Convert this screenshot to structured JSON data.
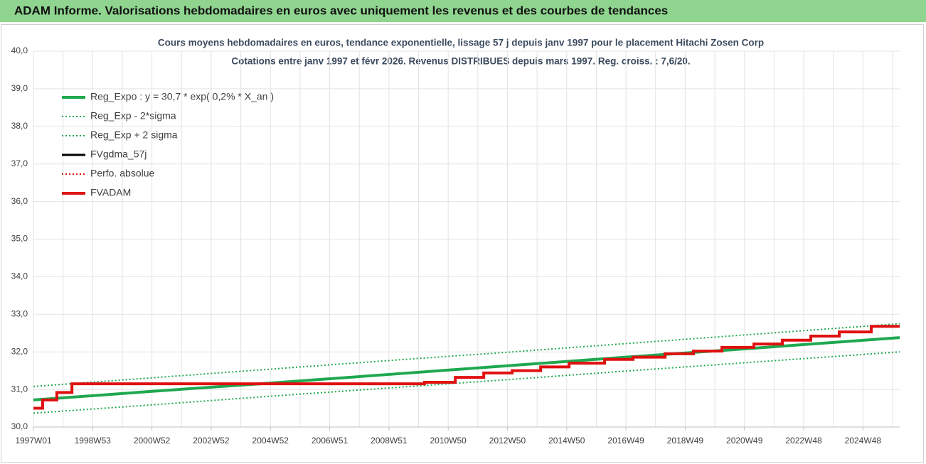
{
  "header": {
    "title": "ADAM Informe. Valorisations hebdomadaires en euros avec uniquement les revenus et des courbes de tendances"
  },
  "chart_data": {
    "type": "line",
    "title": "Cours moyens hebdomadaires en euros, tendance exponentielle, lissage 57 j depuis janv 1997  pour le placement Hitachi Zosen Corp",
    "subtitle": "Cotations entre janv 1997 et févr 2026. Revenus DISTRIBUES depuis mars 1997. Reg. croiss. : 7,6/20.",
    "xlim": [
      1997,
      2026.24
    ],
    "ylim": [
      30,
      40
    ],
    "xticks": [
      {
        "value": 1997,
        "label": "1997W01"
      },
      {
        "value": 1999,
        "label": "1998W53"
      },
      {
        "value": 2001,
        "label": "2000W52"
      },
      {
        "value": 2003,
        "label": "2002W52"
      },
      {
        "value": 2005,
        "label": "2004W52"
      },
      {
        "value": 2007,
        "label": "2006W51"
      },
      {
        "value": 2009,
        "label": "2008W51"
      },
      {
        "value": 2011,
        "label": "2010W50"
      },
      {
        "value": 2013,
        "label": "2012W50"
      },
      {
        "value": 2015,
        "label": "2014W50"
      },
      {
        "value": 2017,
        "label": "2016W49"
      },
      {
        "value": 2019,
        "label": "2018W49"
      },
      {
        "value": 2021,
        "label": "2020W49"
      },
      {
        "value": 2023,
        "label": "2022W48"
      },
      {
        "value": 2025,
        "label": "2024W48"
      }
    ],
    "yticks": [
      {
        "value": 30,
        "label": "30,0"
      },
      {
        "value": 31,
        "label": "31,0"
      },
      {
        "value": 32,
        "label": "32,0"
      },
      {
        "value": 33,
        "label": "33,0"
      },
      {
        "value": 34,
        "label": "34,0"
      },
      {
        "value": 35,
        "label": "35,0"
      },
      {
        "value": 36,
        "label": "36,0"
      },
      {
        "value": 37,
        "label": "37,0"
      },
      {
        "value": 38,
        "label": "38,0"
      },
      {
        "value": 39,
        "label": "39,0"
      },
      {
        "value": 40,
        "label": "40,0"
      }
    ],
    "grid": true,
    "legend": "upper-left",
    "series": [
      {
        "name": "Reg_Expo : y = 30,7 * exp( 0,2% *  X_an )",
        "color": "#1fa84f",
        "width": 4,
        "dash": "solid",
        "x": [
          1997,
          2001,
          2005,
          2009,
          2013,
          2017,
          2021,
          2026.24
        ],
        "values": [
          30.72,
          30.95,
          31.17,
          31.4,
          31.63,
          31.86,
          32.08,
          32.38
        ]
      },
      {
        "name": "Reg_Exp - 2*sigma",
        "color": "#1fa84f",
        "width": 2,
        "dash": "dotted",
        "x": [
          1997,
          2001,
          2005,
          2009,
          2013,
          2017,
          2021,
          2026.24
        ],
        "values": [
          30.37,
          30.59,
          30.82,
          31.04,
          31.26,
          31.49,
          31.71,
          32.0
        ]
      },
      {
        "name": "Reg_Exp + 2 sigma",
        "color": "#1fa84f",
        "width": 2,
        "dash": "dotted",
        "x": [
          1997,
          2001,
          2005,
          2009,
          2013,
          2017,
          2021,
          2026.24
        ],
        "values": [
          31.08,
          31.31,
          31.54,
          31.77,
          31.99,
          32.22,
          32.45,
          32.75
        ]
      },
      {
        "name": "FVgdma_57j",
        "color": "#000000",
        "width": 3,
        "dash": "solid",
        "x": [
          1997,
          1997.31,
          1997.31,
          1997.79,
          1997.79,
          1998.3,
          1998.3,
          2010.2,
          2010.2,
          2011.24,
          2011.24,
          2012.2,
          2012.2,
          2013.16,
          2013.16,
          2014.12,
          2014.12,
          2015.08,
          2015.08,
          2016.28,
          2016.28,
          2017.24,
          2017.24,
          2018.32,
          2018.32,
          2019.28,
          2019.28,
          2020.24,
          2020.24,
          2021.32,
          2021.32,
          2022.28,
          2022.28,
          2023.24,
          2023.24,
          2024.2,
          2024.2,
          2025.28,
          2025.28,
          2026.24
        ],
        "values": [
          30.5,
          30.5,
          30.72,
          30.72,
          30.92,
          30.92,
          31.15,
          31.15,
          31.19,
          31.19,
          31.32,
          31.32,
          31.44,
          31.44,
          31.5,
          31.5,
          31.6,
          31.6,
          31.7,
          31.7,
          31.8,
          31.8,
          31.86,
          31.86,
          31.95,
          31.95,
          32.02,
          32.02,
          32.12,
          32.12,
          32.21,
          32.21,
          32.31,
          32.31,
          32.42,
          32.42,
          32.53,
          32.53,
          32.68,
          32.68
        ]
      },
      {
        "name": "Perfo. absolue",
        "color": "#e01010",
        "width": 2,
        "dash": "dotted",
        "x": [
          1997,
          1997.31,
          1997.31,
          1997.79,
          1997.79,
          1998.3,
          1998.3,
          2010.2,
          2010.2,
          2011.24,
          2011.24,
          2012.2,
          2012.2,
          2013.16,
          2013.16,
          2014.12,
          2014.12,
          2015.08,
          2015.08,
          2016.28,
          2016.28,
          2017.24,
          2017.24,
          2018.32,
          2018.32,
          2019.28,
          2019.28,
          2020.24,
          2020.24,
          2021.32,
          2021.32,
          2022.28,
          2022.28,
          2023.24,
          2023.24,
          2024.2,
          2024.2,
          2025.28,
          2025.28,
          2026.24
        ],
        "values": [
          30.5,
          30.5,
          30.72,
          30.72,
          30.92,
          30.92,
          31.15,
          31.15,
          31.19,
          31.19,
          31.32,
          31.32,
          31.44,
          31.44,
          31.5,
          31.5,
          31.6,
          31.6,
          31.7,
          31.7,
          31.8,
          31.8,
          31.86,
          31.86,
          31.95,
          31.95,
          32.02,
          32.02,
          32.12,
          32.12,
          32.21,
          32.21,
          32.31,
          32.31,
          32.42,
          32.42,
          32.53,
          32.53,
          32.68,
          32.68
        ]
      },
      {
        "name": "FVADAM",
        "color": "#e01010",
        "width": 4,
        "dash": "solid",
        "x": [
          1997,
          1997.31,
          1997.31,
          1997.79,
          1997.79,
          1998.3,
          1998.3,
          2010.2,
          2010.2,
          2011.24,
          2011.24,
          2012.2,
          2012.2,
          2013.16,
          2013.16,
          2014.12,
          2014.12,
          2015.08,
          2015.08,
          2016.28,
          2016.28,
          2017.24,
          2017.24,
          2018.32,
          2018.32,
          2019.28,
          2019.28,
          2020.24,
          2020.24,
          2021.32,
          2021.32,
          2022.28,
          2022.28,
          2023.24,
          2023.24,
          2024.2,
          2024.2,
          2025.28,
          2025.28,
          2026.24
        ],
        "values": [
          30.5,
          30.5,
          30.72,
          30.72,
          30.92,
          30.92,
          31.15,
          31.15,
          31.19,
          31.19,
          31.32,
          31.32,
          31.44,
          31.44,
          31.5,
          31.5,
          31.6,
          31.6,
          31.7,
          31.7,
          31.8,
          31.8,
          31.86,
          31.86,
          31.95,
          31.95,
          32.02,
          32.02,
          32.12,
          32.12,
          32.21,
          32.21,
          32.31,
          32.31,
          32.42,
          32.42,
          32.53,
          32.53,
          32.68,
          32.68
        ]
      }
    ]
  }
}
